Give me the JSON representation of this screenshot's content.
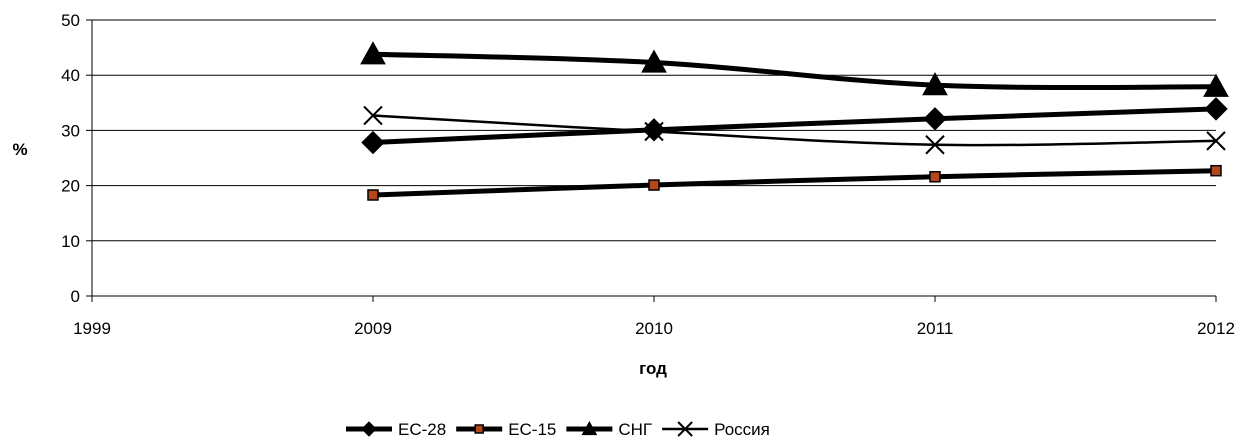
{
  "chart_data": {
    "type": "line",
    "x": [
      2009,
      2010,
      2011,
      2012
    ],
    "x_ticks": [
      1999,
      2009,
      2010,
      2011,
      2012
    ],
    "xlabel": "год",
    "ylabel": "%",
    "ylim": [
      0,
      50
    ],
    "y_ticks": [
      0,
      10,
      20,
      30,
      40,
      50
    ],
    "grid": "horizontal",
    "legend_position": "bottom",
    "series": [
      {
        "name": "ЕС-28",
        "marker": "diamond",
        "color": "#000000",
        "values": [
          27.8,
          30.1,
          32.1,
          33.9
        ]
      },
      {
        "name": "ЕС-15",
        "marker": "square",
        "color": "#000000",
        "marker_fill": "#b5451b",
        "values": [
          18.3,
          20.1,
          21.6,
          22.7
        ]
      },
      {
        "name": "СНГ",
        "marker": "triangle",
        "color": "#000000",
        "values": [
          43.8,
          42.3,
          38.2,
          37.9
        ]
      },
      {
        "name": "Россия",
        "marker": "x",
        "color": "#000000",
        "values": [
          32.7,
          29.8,
          27.4,
          28.1
        ]
      }
    ]
  }
}
